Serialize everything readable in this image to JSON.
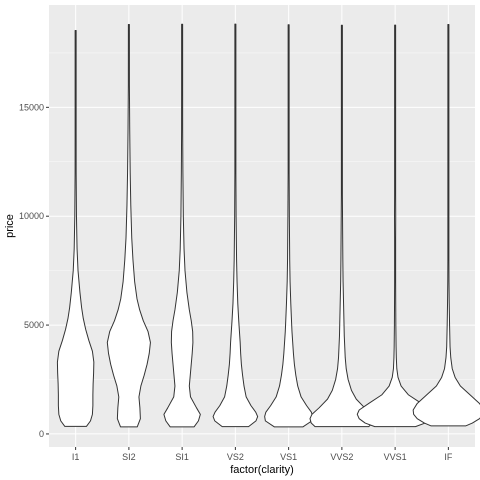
{
  "chart_data": {
    "type": "violin",
    "xlabel": "factor(clarity)",
    "ylabel": "price",
    "ylim": [
      -600,
      19700
    ],
    "y_ticks": [
      0,
      5000,
      10000,
      15000
    ],
    "y_tick_labels": [
      "0",
      "5000",
      "10000",
      "15000"
    ],
    "grid": true,
    "panel_background": "#ebebeb",
    "grid_color": "#ffffff",
    "violin_stroke": "#333333",
    "violin_fill": "#ffffff",
    "categories": [
      "I1",
      "SI2",
      "SI1",
      "VS2",
      "VS1",
      "VVS2",
      "VVS1",
      "IF"
    ],
    "series": [
      {
        "category": "I1",
        "min": 345,
        "max": 18531,
        "density": [
          [
            345,
            0.45
          ],
          [
            600,
            0.62
          ],
          [
            900,
            0.7
          ],
          [
            1300,
            0.72
          ],
          [
            1800,
            0.72
          ],
          [
            2300,
            0.73
          ],
          [
            2800,
            0.75
          ],
          [
            3300,
            0.76
          ],
          [
            3800,
            0.7
          ],
          [
            4300,
            0.55
          ],
          [
            4800,
            0.42
          ],
          [
            5300,
            0.32
          ],
          [
            5800,
            0.25
          ],
          [
            6500,
            0.18
          ],
          [
            7500,
            0.1
          ],
          [
            8500,
            0.06
          ],
          [
            10000,
            0.035
          ],
          [
            12000,
            0.022
          ],
          [
            14000,
            0.015
          ],
          [
            16000,
            0.01
          ],
          [
            18531,
            0.006
          ]
        ]
      },
      {
        "category": "SI2",
        "min": 326,
        "max": 18804,
        "density": [
          [
            326,
            0.35
          ],
          [
            700,
            0.48
          ],
          [
            1200,
            0.46
          ],
          [
            1700,
            0.42
          ],
          [
            2200,
            0.5
          ],
          [
            2700,
            0.64
          ],
          [
            3200,
            0.76
          ],
          [
            3700,
            0.85
          ],
          [
            4200,
            0.9
          ],
          [
            4700,
            0.8
          ],
          [
            5200,
            0.6
          ],
          [
            5700,
            0.45
          ],
          [
            6200,
            0.34
          ],
          [
            7000,
            0.24
          ],
          [
            8000,
            0.17
          ],
          [
            9000,
            0.12
          ],
          [
            10500,
            0.08
          ],
          [
            12000,
            0.055
          ],
          [
            14000,
            0.035
          ],
          [
            16000,
            0.022
          ],
          [
            18804,
            0.012
          ]
        ]
      },
      {
        "category": "SI1",
        "min": 326,
        "max": 18818,
        "density": [
          [
            326,
            0.5
          ],
          [
            600,
            0.68
          ],
          [
            900,
            0.76
          ],
          [
            1200,
            0.6
          ],
          [
            1700,
            0.35
          ],
          [
            2200,
            0.3
          ],
          [
            2700,
            0.34
          ],
          [
            3200,
            0.38
          ],
          [
            3700,
            0.42
          ],
          [
            4200,
            0.45
          ],
          [
            4700,
            0.44
          ],
          [
            5200,
            0.38
          ],
          [
            5700,
            0.3
          ],
          [
            6500,
            0.2
          ],
          [
            7500,
            0.12
          ],
          [
            8500,
            0.08
          ],
          [
            10000,
            0.05
          ],
          [
            12000,
            0.032
          ],
          [
            14000,
            0.022
          ],
          [
            16000,
            0.015
          ],
          [
            18818,
            0.008
          ]
        ]
      },
      {
        "category": "VS2",
        "min": 334,
        "max": 18823,
        "density": [
          [
            334,
            0.55
          ],
          [
            600,
            0.86
          ],
          [
            800,
            0.93
          ],
          [
            1000,
            0.85
          ],
          [
            1300,
            0.65
          ],
          [
            1700,
            0.45
          ],
          [
            2200,
            0.36
          ],
          [
            2700,
            0.3
          ],
          [
            3200,
            0.25
          ],
          [
            3700,
            0.22
          ],
          [
            4200,
            0.2
          ],
          [
            4700,
            0.17
          ],
          [
            5200,
            0.14
          ],
          [
            6000,
            0.1
          ],
          [
            7000,
            0.07
          ],
          [
            8000,
            0.05
          ],
          [
            10000,
            0.03
          ],
          [
            12000,
            0.02
          ],
          [
            14000,
            0.014
          ],
          [
            16000,
            0.01
          ],
          [
            18823,
            0.006
          ]
        ]
      },
      {
        "category": "VS1",
        "min": 327,
        "max": 18795,
        "density": [
          [
            327,
            0.6
          ],
          [
            600,
            0.97
          ],
          [
            800,
            1.0
          ],
          [
            1000,
            0.95
          ],
          [
            1300,
            0.75
          ],
          [
            1700,
            0.52
          ],
          [
            2200,
            0.38
          ],
          [
            2700,
            0.3
          ],
          [
            3200,
            0.24
          ],
          [
            3700,
            0.2
          ],
          [
            4200,
            0.17
          ],
          [
            4700,
            0.14
          ],
          [
            5200,
            0.12
          ],
          [
            6000,
            0.09
          ],
          [
            7000,
            0.06
          ],
          [
            8000,
            0.045
          ],
          [
            10000,
            0.03
          ],
          [
            12000,
            0.02
          ],
          [
            14000,
            0.014
          ],
          [
            16000,
            0.01
          ],
          [
            18795,
            0.006
          ]
        ]
      },
      {
        "category": "VVS2",
        "min": 336,
        "max": 18768,
        "density": [
          [
            336,
            1.12
          ],
          [
            500,
            1.28
          ],
          [
            700,
            1.33
          ],
          [
            900,
            1.25
          ],
          [
            1200,
            0.95
          ],
          [
            1600,
            0.6
          ],
          [
            2000,
            0.4
          ],
          [
            2500,
            0.26
          ],
          [
            3000,
            0.18
          ],
          [
            3500,
            0.14
          ],
          [
            4000,
            0.12
          ],
          [
            4500,
            0.1
          ],
          [
            5000,
            0.09
          ],
          [
            6000,
            0.07
          ],
          [
            7000,
            0.05
          ],
          [
            8000,
            0.04
          ],
          [
            9500,
            0.03
          ],
          [
            11000,
            0.02
          ],
          [
            13000,
            0.014
          ],
          [
            16000,
            0.01
          ],
          [
            18768,
            0.006
          ]
        ]
      },
      {
        "category": "VVS1",
        "min": 336,
        "max": 18777,
        "density": [
          [
            336,
            0.85
          ],
          [
            500,
            1.25
          ],
          [
            700,
            1.5
          ],
          [
            900,
            1.58
          ],
          [
            1100,
            1.5
          ],
          [
            1400,
            1.1
          ],
          [
            1800,
            0.55
          ],
          [
            2200,
            0.25
          ],
          [
            2600,
            0.12
          ],
          [
            3000,
            0.07
          ],
          [
            3500,
            0.05
          ],
          [
            4000,
            0.04
          ],
          [
            5000,
            0.03
          ],
          [
            6000,
            0.025
          ],
          [
            7000,
            0.02
          ],
          [
            8000,
            0.018
          ],
          [
            9000,
            0.02
          ],
          [
            10000,
            0.025
          ],
          [
            11000,
            0.02
          ],
          [
            13000,
            0.012
          ],
          [
            16000,
            0.008
          ],
          [
            18777,
            0.005
          ]
        ]
      },
      {
        "category": "IF",
        "min": 369,
        "max": 18806,
        "density": [
          [
            369,
            0.72
          ],
          [
            500,
            1.0
          ],
          [
            700,
            1.3
          ],
          [
            900,
            1.45
          ],
          [
            1100,
            1.47
          ],
          [
            1400,
            1.3
          ],
          [
            1800,
            0.9
          ],
          [
            2200,
            0.5
          ],
          [
            2600,
            0.28
          ],
          [
            3000,
            0.16
          ],
          [
            3500,
            0.1
          ],
          [
            4000,
            0.07
          ],
          [
            5000,
            0.05
          ],
          [
            6000,
            0.035
          ],
          [
            7000,
            0.025
          ],
          [
            8000,
            0.02
          ],
          [
            10000,
            0.014
          ],
          [
            12000,
            0.01
          ],
          [
            14000,
            0.008
          ],
          [
            16000,
            0.006
          ],
          [
            18806,
            0.004
          ]
        ]
      }
    ]
  }
}
